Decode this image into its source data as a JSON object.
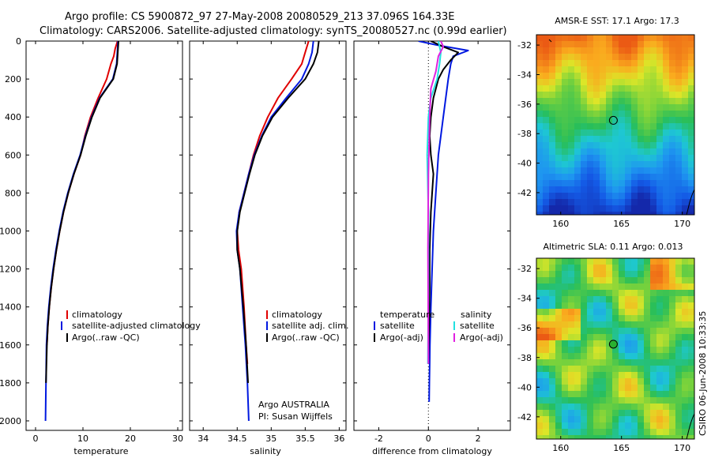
{
  "header": {
    "line1": "Argo profile: CS 5900872_97 27-May-2008 20080529_213 37.096S 164.33E",
    "line2": "Climatology: CARS2006. Satellite-adjusted climatology: synTS_20080527.nc (0.99d earlier)"
  },
  "colors": {
    "climatology": "#e00000",
    "satellite": "#0018e0",
    "argo": "#000000",
    "salinity_sat": "#22e0e0",
    "salinity_argo": "#e020e0"
  },
  "chart_data": [
    {
      "type": "line",
      "id": "temperature",
      "xlabel": "temperature",
      "ylabel": "",
      "xlim": [
        -2,
        31
      ],
      "ylim": [
        2050,
        0
      ],
      "xticks": [
        0,
        10,
        20,
        30
      ],
      "yticks": [
        0,
        200,
        400,
        600,
        800,
        1000,
        1200,
        1400,
        1600,
        1800,
        2000
      ],
      "legend": [
        "climatology",
        "satellite-adjusted climatology",
        "Argo(..raw -QC)"
      ],
      "series": [
        {
          "name": "climatology",
          "color_key": "climatology",
          "x": [
            17.3,
            16.8,
            16.5,
            15.9,
            15.0,
            13.2,
            11.6,
            10.4,
            9.5,
            8.1,
            6.9,
            5.9,
            5.1,
            4.4,
            3.8,
            3.3,
            2.9,
            2.6,
            2.4
          ],
          "y": [
            0,
            40,
            80,
            120,
            200,
            300,
            400,
            500,
            600,
            700,
            800,
            900,
            1000,
            1100,
            1200,
            1300,
            1400,
            1500,
            1600
          ]
        },
        {
          "name": "satellite-adjusted climatology",
          "color_key": "satellite",
          "x": [
            17.4,
            17.3,
            17.2,
            17.1,
            16.3,
            13.5,
            11.8,
            10.5,
            9.4,
            8.0,
            6.8,
            5.8,
            5.0,
            4.3,
            3.7,
            3.2,
            2.8,
            2.5,
            2.3,
            2.2,
            2.1
          ],
          "y": [
            0,
            40,
            80,
            120,
            200,
            300,
            400,
            500,
            600,
            700,
            800,
            900,
            1000,
            1100,
            1200,
            1300,
            1400,
            1500,
            1600,
            1800,
            2000
          ]
        },
        {
          "name": "Argo(..raw -QC)",
          "color_key": "argo",
          "x": [
            17.5,
            17.4,
            17.3,
            17.2,
            16.4,
            13.6,
            11.9,
            10.6,
            9.5,
            8.1,
            6.9,
            5.9,
            5.1,
            4.4,
            3.8,
            3.3,
            2.9,
            2.6,
            2.4,
            2.2
          ],
          "y": [
            0,
            40,
            80,
            120,
            200,
            300,
            400,
            500,
            600,
            700,
            800,
            900,
            1000,
            1100,
            1200,
            1300,
            1400,
            1500,
            1600,
            1800
          ]
        }
      ]
    },
    {
      "type": "line",
      "id": "salinity",
      "xlabel": "salinity",
      "xlim": [
        33.8,
        36.1
      ],
      "ylim": [
        2050,
        0
      ],
      "xticks": [
        34,
        34.5,
        35,
        35.5,
        36
      ],
      "xticklabels": [
        "34",
        "34.5",
        "35",
        "35.5",
        "36"
      ],
      "yticks": [
        0,
        200,
        400,
        600,
        800,
        1000,
        1200,
        1400,
        1600,
        1800,
        2000
      ],
      "legend": [
        "climatology",
        "satellite adj. clim.",
        "Argo(..raw -QC)"
      ],
      "note_line1": "Argo AUSTRALIA",
      "note_line2": "PI: Susan Wijffels",
      "series": [
        {
          "name": "climatology",
          "color_key": "climatology",
          "x": [
            35.55,
            35.5,
            35.45,
            35.3,
            35.1,
            34.95,
            34.83,
            34.74,
            34.67,
            34.6,
            34.53,
            34.5,
            34.52,
            34.56,
            34.6,
            34.63,
            34.65
          ],
          "y": [
            0,
            60,
            120,
            200,
            300,
            400,
            500,
            600,
            700,
            800,
            900,
            1000,
            1100,
            1200,
            1400,
            1600,
            1700
          ]
        },
        {
          "name": "satellite adj. clim.",
          "color_key": "satellite",
          "x": [
            35.62,
            35.6,
            35.55,
            35.45,
            35.22,
            35.0,
            34.86,
            34.75,
            34.67,
            34.6,
            34.53,
            34.49,
            34.5,
            34.54,
            34.58,
            34.62,
            34.65,
            34.67
          ],
          "y": [
            0,
            60,
            120,
            200,
            300,
            400,
            500,
            600,
            700,
            800,
            900,
            1000,
            1100,
            1200,
            1400,
            1600,
            1800,
            2000
          ]
        },
        {
          "name": "Argo(..raw -QC)",
          "color_key": "argo",
          "x": [
            35.7,
            35.68,
            35.62,
            35.5,
            35.25,
            35.02,
            34.87,
            34.76,
            34.68,
            34.61,
            34.54,
            34.5,
            34.5,
            34.54,
            34.59,
            34.63,
            34.66
          ],
          "y": [
            0,
            60,
            120,
            200,
            300,
            400,
            500,
            600,
            700,
            800,
            900,
            1000,
            1100,
            1200,
            1400,
            1600,
            1800
          ]
        }
      ]
    },
    {
      "type": "line",
      "id": "difference",
      "xlabel": "difference from climatology",
      "xlim": [
        -3,
        3.3
      ],
      "ylim": [
        2050,
        0
      ],
      "xticks": [
        -2,
        0,
        2
      ],
      "yticks": [
        0,
        200,
        400,
        600,
        800,
        1000,
        1200,
        1400,
        1600,
        1800,
        2000
      ],
      "legend_headers": [
        "temperature",
        "salinity"
      ],
      "legend": [
        "satellite",
        "Argo(-adj)",
        "satellite",
        "Argo(-adj)"
      ],
      "series": [
        {
          "name": "temperature satellite",
          "color_key": "satellite",
          "x": [
            -0.4,
            0.3,
            1.6,
            1.0,
            0.9,
            0.8,
            0.6,
            0.4,
            0.3,
            0.2,
            0.15,
            0.1,
            0.08,
            0.06,
            0.05,
            0.04,
            0.03
          ],
          "y": [
            0,
            20,
            50,
            80,
            120,
            200,
            400,
            600,
            800,
            1000,
            1200,
            1400,
            1500,
            1600,
            1700,
            1800,
            1900
          ]
        },
        {
          "name": "temperature Argo(-adj)",
          "color_key": "argo",
          "x": [
            0.1,
            0.6,
            1.2,
            0.9,
            0.6,
            0.4,
            0.2,
            0.1,
            0.05,
            0.1,
            0.2,
            0.15,
            0.1,
            0.05,
            0.05,
            0.0
          ],
          "y": [
            0,
            30,
            60,
            100,
            150,
            200,
            300,
            400,
            500,
            600,
            700,
            800,
            900,
            1100,
            1300,
            1700
          ]
        },
        {
          "name": "salinity satellite",
          "color_key": "salinity_sat",
          "x": [
            0.4,
            0.5,
            0.45,
            0.35,
            0.1,
            0.0,
            -0.05,
            0.0,
            0.0,
            -0.02
          ],
          "y": [
            0,
            60,
            120,
            200,
            300,
            400,
            600,
            900,
            1300,
            1700
          ]
        },
        {
          "name": "salinity Argo(-adj)",
          "color_key": "salinity_argo",
          "x": [
            0.5,
            0.6,
            0.4,
            0.3,
            0.1,
            0.05,
            0.0,
            -0.02,
            0.0
          ],
          "y": [
            0,
            30,
            80,
            160,
            250,
            400,
            700,
            1100,
            1700
          ]
        }
      ]
    },
    {
      "type": "heatmap",
      "id": "sst_map",
      "title": "AMSR-E SST: 17.1  Argo: 17.3",
      "xlim": [
        158,
        171
      ],
      "ylim": [
        -43.5,
        -31.3
      ],
      "xticks": [
        160,
        165,
        170
      ],
      "yticks": [
        -32,
        -34,
        -36,
        -38,
        -40,
        -42
      ],
      "marker": {
        "lon": 164.33,
        "lat": -37.1
      }
    },
    {
      "type": "heatmap",
      "id": "sla_map",
      "title": "Altimetric SLA: 0.11  Argo: 0.013",
      "xlim": [
        158,
        171
      ],
      "ylim": [
        -43.5,
        -31.3
      ],
      "xticks": [
        160,
        165,
        170
      ],
      "yticks": [
        -32,
        -34,
        -36,
        -38,
        -40,
        -42
      ],
      "marker": {
        "lon": 164.33,
        "lat": -37.1
      }
    }
  ],
  "footer": {
    "stamp": "CSIRO 06-Jun-2008 10:33:35"
  }
}
